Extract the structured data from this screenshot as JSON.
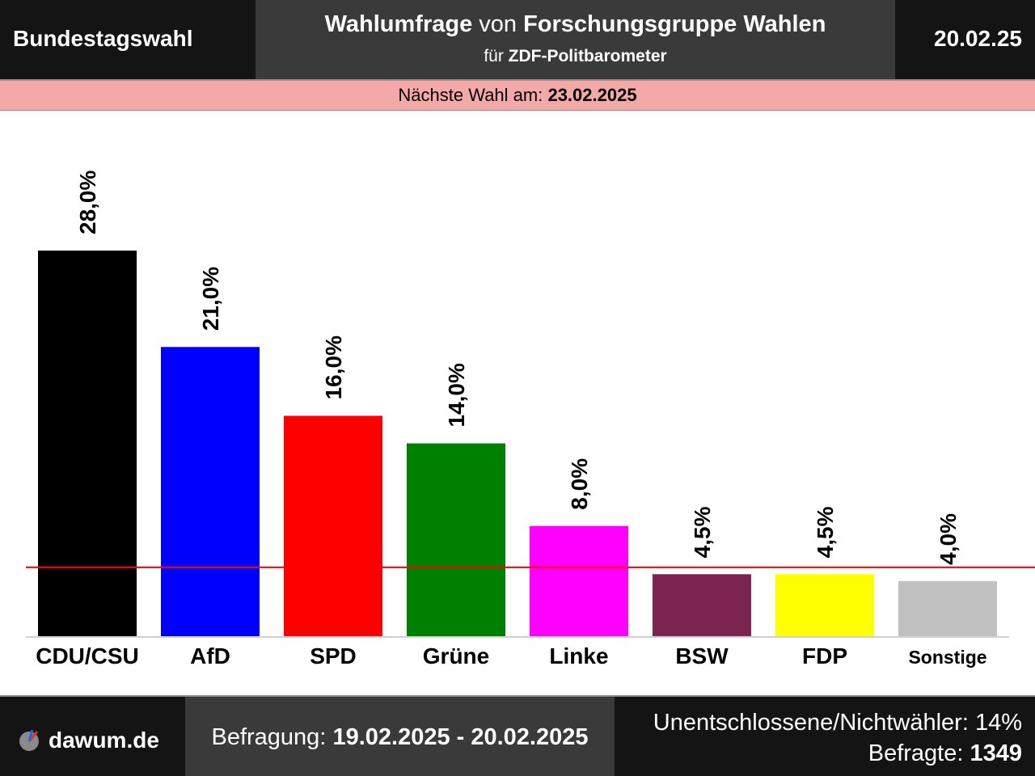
{
  "header": {
    "election": "Bundestagswahl",
    "title_part1": "Wahlumfrage",
    "title_part2": " von ",
    "title_part3": "Forschungsgruppe Wahlen",
    "subtitle_part1": "für ",
    "subtitle_part2": "ZDF-Politbarometer",
    "date": "20.02.25"
  },
  "next_election": {
    "label": "Nächste Wahl am: ",
    "date": "23.02.2025"
  },
  "chart_data": {
    "type": "bar",
    "categories": [
      "CDU/CSU",
      "AfD",
      "SPD",
      "Grüne",
      "Linke",
      "BSW",
      "FDP",
      "Sonstige"
    ],
    "values": [
      28.0,
      21.0,
      16.0,
      14.0,
      8.0,
      4.5,
      4.5,
      4.0
    ],
    "value_labels": [
      "28,0%",
      "21,0%",
      "16,0%",
      "14,0%",
      "8,0%",
      "4,5%",
      "4,5%",
      "4,0%"
    ],
    "colors": [
      "#000000",
      "#0000ff",
      "#ff0000",
      "#008000",
      "#ff00ff",
      "#7b2450",
      "#ffff00",
      "#c0c0c0"
    ],
    "threshold": 5.0,
    "threshold_color": "#ff0000",
    "ylim": [
      0,
      28.0
    ],
    "grid": false,
    "legend": "none"
  },
  "footer": {
    "logo_text": "dawum.de",
    "survey_label": "Befragung: ",
    "survey_period": "19.02.2025 - 20.02.2025",
    "undecided_label": "Unentschlossene/Nichtwähler: ",
    "undecided_value": "14%",
    "respondents_label": "Befragte: ",
    "respondents_value": "1349"
  }
}
